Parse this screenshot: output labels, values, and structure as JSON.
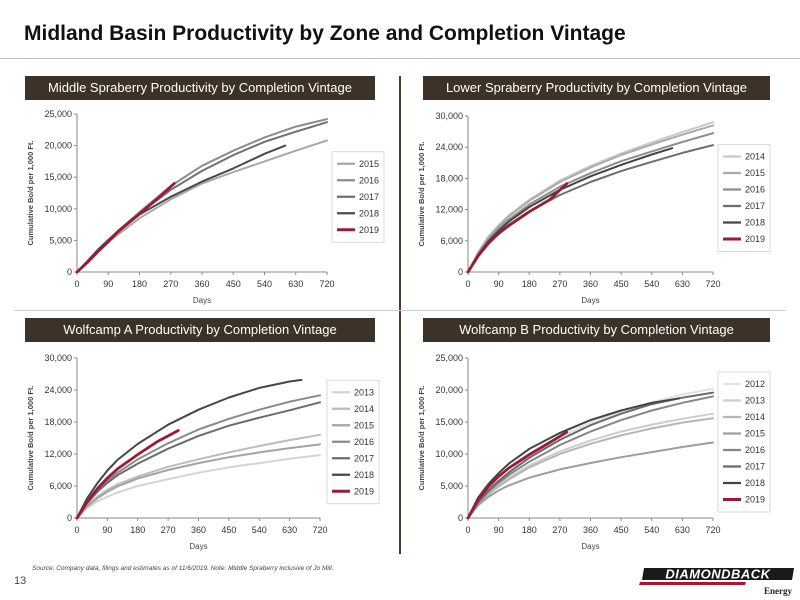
{
  "page": {
    "title": "Midland Basin Productivity by Zone and Completion Vintage",
    "source": "Source: Company data, filings and estimates as of 11/6/2019. Note: Middle Spraberry inclusive of Jo Mill.",
    "page_number": "13",
    "logo_text": "DIAMONDBACK",
    "logo_sub": "Energy"
  },
  "colors": {
    "header_bar": "#3d3228",
    "highlight_2019": "#9b1b34",
    "logo_red": "#b3122e"
  },
  "chart_data": [
    {
      "type": "line",
      "title": "Middle Spraberry Productivity by Completion Vintage",
      "xlabel": "Days",
      "ylabel": "Cumulative Bo/d per 1,000 Ft.",
      "xlim": [
        0,
        720
      ],
      "ylim": [
        0,
        25000
      ],
      "xticks": [
        0,
        90,
        180,
        270,
        360,
        450,
        540,
        630,
        720
      ],
      "yticks": [
        0,
        5000,
        10000,
        15000,
        20000,
        25000
      ],
      "ytick_labels": [
        "0",
        "5,000",
        "10,000",
        "15,000",
        "20,000",
        "25,000"
      ],
      "legend": "right",
      "series": [
        {
          "name": "2015",
          "color": "#a8a8a8",
          "x": [
            0,
            30,
            60,
            90,
            120,
            180,
            270,
            360,
            450,
            540,
            630,
            720
          ],
          "y": [
            0,
            1600,
            3300,
            4800,
            6000,
            8500,
            11500,
            14000,
            15800,
            17500,
            19200,
            20800
          ]
        },
        {
          "name": "2016",
          "color": "#8c8c8c",
          "x": [
            0,
            30,
            60,
            90,
            120,
            180,
            270,
            360,
            450,
            540,
            630,
            720
          ],
          "y": [
            0,
            1700,
            3500,
            5100,
            6600,
            9500,
            13600,
            16800,
            19200,
            21300,
            23000,
            24200
          ]
        },
        {
          "name": "2017",
          "color": "#707070",
          "x": [
            0,
            30,
            60,
            90,
            120,
            180,
            270,
            360,
            450,
            540,
            630,
            720
          ],
          "y": [
            0,
            1700,
            3500,
            5100,
            6500,
            9300,
            13000,
            16000,
            18500,
            20600,
            22200,
            23700
          ]
        },
        {
          "name": "2018",
          "color": "#4a4a4a",
          "x": [
            0,
            30,
            60,
            90,
            120,
            180,
            270,
            360,
            450,
            540,
            600
          ],
          "y": [
            0,
            1700,
            3500,
            5000,
            6400,
            9100,
            11900,
            14300,
            16400,
            18700,
            20000
          ]
        },
        {
          "name": "2019",
          "color": "#9b1b34",
          "x": [
            0,
            30,
            60,
            90,
            120,
            180,
            240,
            280
          ],
          "y": [
            0,
            1500,
            3200,
            4800,
            6500,
            9200,
            12000,
            14000
          ]
        }
      ]
    },
    {
      "type": "line",
      "title": "Lower Spraberry Productivity by Completion Vintage",
      "xlabel": "Days",
      "ylabel": "Cumulative Bo/d per 1,000 Ft.",
      "xlim": [
        0,
        720
      ],
      "ylim": [
        0,
        30000
      ],
      "xticks": [
        0,
        90,
        180,
        270,
        360,
        450,
        540,
        630,
        720
      ],
      "yticks": [
        0,
        6000,
        12000,
        18000,
        24000,
        30000
      ],
      "ytick_labels": [
        "0",
        "6,000",
        "12,000",
        "18,000",
        "24,000",
        "30,000"
      ],
      "legend": "right",
      "series": [
        {
          "name": "2014",
          "color": "#c8c8c8",
          "x": [
            0,
            30,
            60,
            90,
            120,
            180,
            270,
            360,
            450,
            540,
            630,
            720
          ],
          "y": [
            0,
            3800,
            6800,
            9000,
            10900,
            13900,
            17600,
            20400,
            22800,
            24900,
            26900,
            28800
          ]
        },
        {
          "name": "2015",
          "color": "#ababab",
          "x": [
            0,
            30,
            60,
            90,
            120,
            180,
            270,
            360,
            450,
            540,
            630,
            720
          ],
          "y": [
            0,
            3700,
            6600,
            8800,
            10700,
            13700,
            17300,
            20100,
            22500,
            24500,
            26400,
            28200
          ]
        },
        {
          "name": "2016",
          "color": "#8e8e8e",
          "x": [
            0,
            30,
            60,
            90,
            120,
            180,
            270,
            360,
            450,
            540,
            630,
            720
          ],
          "y": [
            0,
            3500,
            6200,
            8300,
            10100,
            13000,
            16400,
            19000,
            21300,
            23200,
            25000,
            26700
          ]
        },
        {
          "name": "2017",
          "color": "#6e6e6e",
          "x": [
            0,
            30,
            60,
            90,
            120,
            180,
            270,
            360,
            450,
            540,
            630,
            720
          ],
          "y": [
            0,
            3200,
            5600,
            7500,
            9100,
            11700,
            14800,
            17300,
            19400,
            21200,
            22900,
            24400
          ]
        },
        {
          "name": "2018",
          "color": "#444444",
          "x": [
            0,
            30,
            60,
            90,
            120,
            180,
            270,
            360,
            450,
            540,
            600
          ],
          "y": [
            0,
            3300,
            5900,
            7900,
            9700,
            12500,
            15800,
            18400,
            20600,
            22600,
            23800
          ]
        },
        {
          "name": "2019",
          "color": "#9b1b34",
          "x": [
            0,
            30,
            60,
            90,
            120,
            180,
            240,
            290
          ],
          "y": [
            0,
            3100,
            5500,
            7400,
            8900,
            11600,
            13900,
            17000
          ]
        }
      ]
    },
    {
      "type": "line",
      "title": "Wolfcamp A Productivity by Completion Vintage",
      "xlabel": "Days",
      "ylabel": "Cumulative Bo/d per 1,000 Ft.",
      "xlim": [
        0,
        720
      ],
      "ylim": [
        0,
        30000
      ],
      "xticks": [
        0,
        90,
        180,
        270,
        360,
        450,
        540,
        630,
        720
      ],
      "yticks": [
        0,
        6000,
        12000,
        18000,
        24000,
        30000
      ],
      "ytick_labels": [
        "0",
        "6,000",
        "12,000",
        "18,000",
        "24,000",
        "30,000"
      ],
      "legend": "right",
      "series": [
        {
          "name": "2013",
          "color": "#d4d4d4",
          "x": [
            0,
            30,
            60,
            90,
            120,
            180,
            270,
            360,
            450,
            540,
            630,
            720
          ],
          "y": [
            0,
            1800,
            3100,
            4000,
            4800,
            6000,
            7300,
            8500,
            9500,
            10300,
            11100,
            11800
          ]
        },
        {
          "name": "2014",
          "color": "#bcbcbc",
          "x": [
            0,
            30,
            60,
            90,
            120,
            180,
            270,
            360,
            450,
            540,
            630,
            720
          ],
          "y": [
            0,
            2400,
            4000,
            5300,
            6300,
            7800,
            9600,
            11000,
            12300,
            13500,
            14600,
            15600
          ]
        },
        {
          "name": "2015",
          "color": "#a4a4a4",
          "x": [
            0,
            30,
            60,
            90,
            120,
            180,
            270,
            360,
            450,
            540,
            630,
            720
          ],
          "y": [
            0,
            2200,
            3700,
            4900,
            5900,
            7400,
            9000,
            10300,
            11400,
            12300,
            13100,
            13800
          ]
        },
        {
          "name": "2016",
          "color": "#8a8a8a",
          "x": [
            0,
            30,
            60,
            90,
            120,
            180,
            270,
            360,
            450,
            540,
            630,
            720
          ],
          "y": [
            0,
            3000,
            5200,
            7000,
            8500,
            11000,
            14000,
            16600,
            18600,
            20300,
            21800,
            23000
          ]
        },
        {
          "name": "2017",
          "color": "#6c6c6c",
          "x": [
            0,
            30,
            60,
            90,
            120,
            180,
            270,
            360,
            450,
            540,
            630,
            720
          ],
          "y": [
            0,
            2800,
            4900,
            6600,
            8000,
            10200,
            13000,
            15400,
            17300,
            18800,
            20200,
            21700
          ]
        },
        {
          "name": "2018",
          "color": "#464646",
          "x": [
            0,
            30,
            60,
            90,
            120,
            180,
            270,
            360,
            450,
            540,
            630,
            665
          ],
          "y": [
            0,
            3700,
            6500,
            8900,
            10900,
            13900,
            17500,
            20300,
            22600,
            24400,
            25600,
            25900
          ]
        },
        {
          "name": "2019",
          "color": "#9b1b34",
          "x": [
            0,
            30,
            60,
            90,
            120,
            180,
            240,
            300
          ],
          "y": [
            0,
            3000,
            5500,
            7500,
            9200,
            11900,
            14400,
            16400
          ]
        }
      ]
    },
    {
      "type": "line",
      "title": "Wolfcamp B Productivity by Completion Vintage",
      "xlabel": "Days",
      "ylabel": "Cumulative Bo/d per 1,000 Ft.",
      "xlim": [
        0,
        720
      ],
      "ylim": [
        0,
        25000
      ],
      "xticks": [
        0,
        90,
        180,
        270,
        360,
        450,
        540,
        630,
        720
      ],
      "yticks": [
        0,
        5000,
        10000,
        15000,
        20000,
        25000
      ],
      "ytick_labels": [
        "0",
        "5,000",
        "10,000",
        "15,000",
        "20,000",
        "25,000"
      ],
      "legend": "right",
      "series": [
        {
          "name": "2012",
          "color": "#e2e2e2",
          "x": [
            0,
            30,
            60,
            90,
            120,
            180,
            270,
            360,
            450,
            540,
            630,
            720
          ],
          "y": [
            0,
            2500,
            4300,
            5900,
            7200,
            9700,
            12700,
            14900,
            16700,
            18100,
            19300,
            20200
          ]
        },
        {
          "name": "2013",
          "color": "#cccccc",
          "x": [
            0,
            30,
            60,
            90,
            120,
            180,
            270,
            360,
            450,
            540,
            630,
            720
          ],
          "y": [
            0,
            2300,
            3900,
            5200,
            6300,
            8200,
            10400,
            12100,
            13500,
            14600,
            15500,
            16300
          ]
        },
        {
          "name": "2014",
          "color": "#b6b6b6",
          "x": [
            0,
            30,
            60,
            90,
            120,
            180,
            270,
            360,
            450,
            540,
            630,
            720
          ],
          "y": [
            0,
            2200,
            3700,
            4900,
            6000,
            7900,
            10000,
            11600,
            12900,
            14000,
            14900,
            15600
          ]
        },
        {
          "name": "2015",
          "color": "#9e9e9e",
          "x": [
            0,
            30,
            60,
            90,
            120,
            180,
            270,
            360,
            450,
            540,
            630,
            720
          ],
          "y": [
            0,
            2000,
            3300,
            4300,
            5100,
            6300,
            7600,
            8600,
            9500,
            10300,
            11100,
            11800
          ]
        },
        {
          "name": "2016",
          "color": "#868686",
          "x": [
            0,
            30,
            60,
            90,
            120,
            180,
            270,
            360,
            450,
            540,
            630,
            720
          ],
          "y": [
            0,
            2400,
            4100,
            5500,
            6700,
            8800,
            11400,
            13500,
            15300,
            16800,
            18000,
            19000
          ]
        },
        {
          "name": "2017",
          "color": "#6a6a6a",
          "x": [
            0,
            30,
            60,
            90,
            120,
            180,
            270,
            360,
            450,
            540,
            630,
            720
          ],
          "y": [
            0,
            2500,
            4300,
            5800,
            7100,
            9400,
            12200,
            14500,
            16300,
            17800,
            18800,
            19600
          ]
        },
        {
          "name": "2018",
          "color": "#444444",
          "x": [
            0,
            30,
            60,
            90,
            120,
            180,
            270,
            360,
            450,
            540,
            620
          ],
          "y": [
            0,
            3200,
            5300,
            7000,
            8500,
            10800,
            13300,
            15300,
            16800,
            18000,
            18700
          ]
        },
        {
          "name": "2019",
          "color": "#9b1b34",
          "x": [
            0,
            30,
            60,
            90,
            120,
            180,
            240,
            290
          ],
          "y": [
            0,
            2900,
            4900,
            6500,
            7800,
            9900,
            11800,
            13400
          ]
        }
      ]
    }
  ]
}
